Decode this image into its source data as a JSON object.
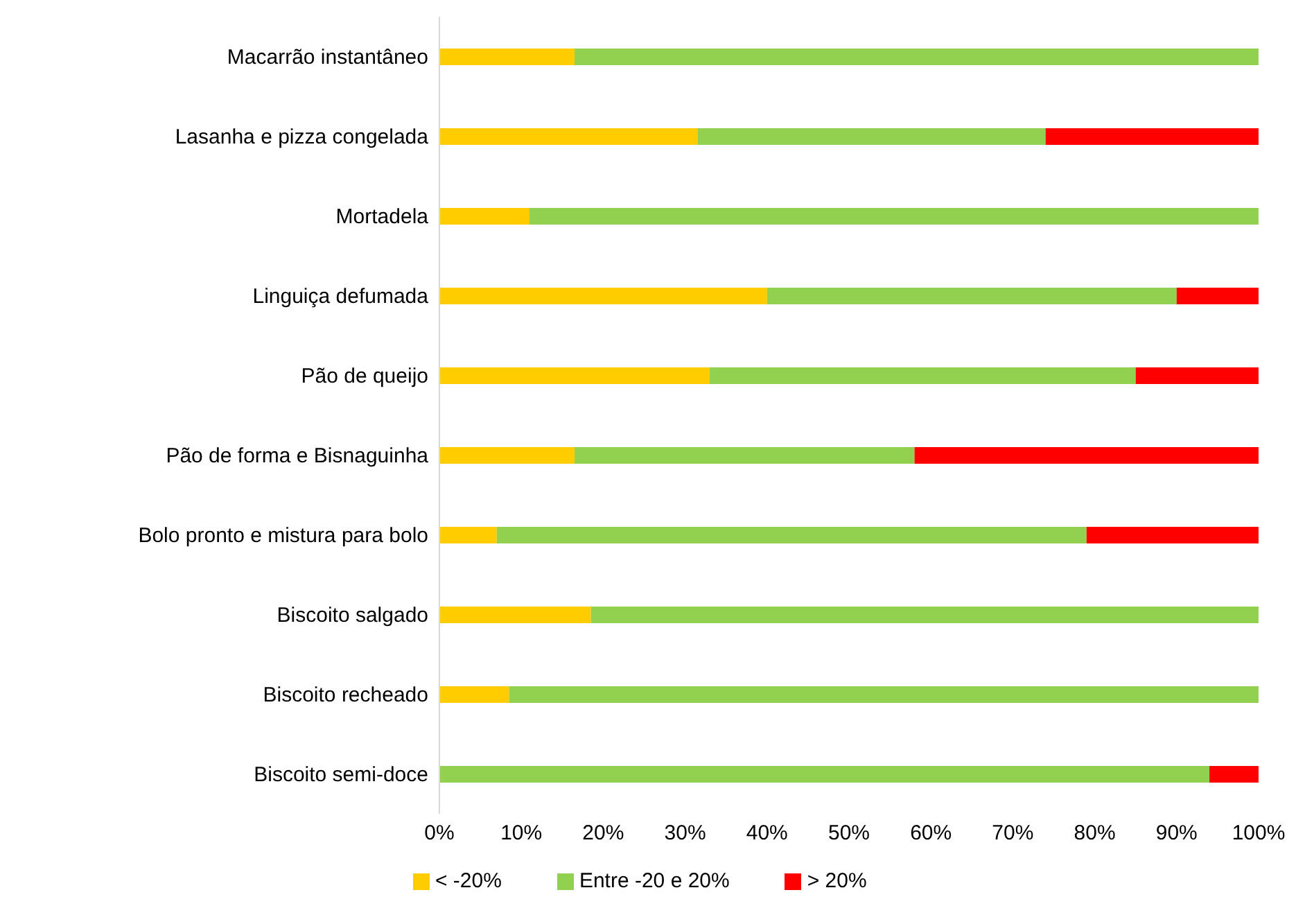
{
  "chart_data": {
    "type": "bar",
    "orientation": "horizontal",
    "stacked": true,
    "categories": [
      "Macarrão instantâneo",
      "Lasanha e pizza congelada",
      "Mortadela",
      "Linguiça defumada",
      "Pão de queijo",
      "Pão de forma e Bisnaguinha",
      "Bolo pronto e mistura para bolo",
      "Biscoito salgado",
      "Biscoito recheado",
      "Biscoito semi-doce"
    ],
    "series": [
      {
        "name": "< -20%",
        "color": "#ffcc00",
        "values": [
          16.5,
          31.5,
          11,
          40,
          33,
          16.5,
          7,
          18.5,
          8.5,
          0
        ]
      },
      {
        "name": "Entre -20 e 20%",
        "color": "#92d050",
        "values": [
          83.5,
          42.5,
          89,
          50,
          52,
          41.5,
          72,
          81.5,
          91.5,
          94
        ]
      },
      {
        "name": "> 20%",
        "color": "#ff0000",
        "values": [
          0,
          26,
          0,
          10,
          15,
          42,
          21,
          0,
          0,
          6
        ]
      }
    ],
    "xlim": [
      0,
      100
    ],
    "xticks": [
      {
        "value": 0,
        "label": "0%"
      },
      {
        "value": 10,
        "label": "10%"
      },
      {
        "value": 20,
        "label": "20%"
      },
      {
        "value": 30,
        "label": "30%"
      },
      {
        "value": 40,
        "label": "40%"
      },
      {
        "value": 50,
        "label": "50%"
      },
      {
        "value": 60,
        "label": "60%"
      },
      {
        "value": 70,
        "label": "70%"
      },
      {
        "value": 80,
        "label": "80%"
      },
      {
        "value": 90,
        "label": "90%"
      },
      {
        "value": 100,
        "label": "100%"
      }
    ],
    "grid": false,
    "legend": "bottom left"
  }
}
